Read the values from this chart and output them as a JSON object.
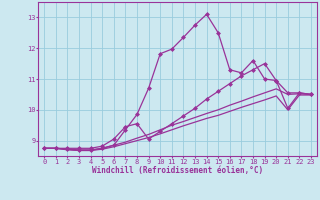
{
  "xlabel": "Windchill (Refroidissement éolien,°C)",
  "bg_color": "#cce8f0",
  "line_color": "#993399",
  "grid_color": "#99ccdd",
  "xlim": [
    -0.5,
    23.5
  ],
  "ylim": [
    8.5,
    13.5
  ],
  "xticks": [
    0,
    1,
    2,
    3,
    4,
    5,
    6,
    7,
    8,
    9,
    10,
    11,
    12,
    13,
    14,
    15,
    16,
    17,
    18,
    19,
    20,
    21,
    22,
    23
  ],
  "yticks": [
    9,
    10,
    11,
    12,
    13
  ],
  "series": [
    {
      "x": [
        0,
        1,
        2,
        3,
        4,
        5,
        6,
        7,
        8,
        9,
        10,
        11,
        12,
        13,
        14,
        15,
        16,
        17,
        18,
        19,
        20,
        21,
        22,
        23
      ],
      "y": [
        8.75,
        8.75,
        8.75,
        8.75,
        8.75,
        8.82,
        9.05,
        9.45,
        9.55,
        9.05,
        9.3,
        9.55,
        9.8,
        10.05,
        10.35,
        10.6,
        10.85,
        11.1,
        11.3,
        11.5,
        10.95,
        10.55,
        10.55,
        10.5
      ],
      "marker": true
    },
    {
      "x": [
        0,
        1,
        2,
        3,
        4,
        5,
        6,
        7,
        8,
        9,
        10,
        11,
        12,
        13,
        14,
        15,
        16,
        17,
        18,
        19,
        20,
        21,
        22,
        23
      ],
      "y": [
        8.75,
        8.75,
        8.72,
        8.7,
        8.7,
        8.75,
        8.85,
        8.95,
        9.08,
        9.2,
        9.35,
        9.5,
        9.62,
        9.75,
        9.88,
        10.0,
        10.15,
        10.28,
        10.42,
        10.55,
        10.68,
        10.5,
        10.52,
        10.5
      ],
      "marker": false
    },
    {
      "x": [
        0,
        1,
        2,
        3,
        4,
        5,
        6,
        7,
        8,
        9,
        10,
        11,
        12,
        13,
        14,
        15,
        16,
        17,
        18,
        19,
        20,
        21,
        22,
        23
      ],
      "y": [
        8.75,
        8.75,
        8.7,
        8.68,
        8.68,
        8.72,
        8.8,
        8.9,
        9.0,
        9.1,
        9.22,
        9.35,
        9.48,
        9.6,
        9.72,
        9.82,
        9.95,
        10.08,
        10.2,
        10.32,
        10.45,
        10.0,
        10.48,
        10.48
      ],
      "marker": false
    },
    {
      "x": [
        0,
        1,
        2,
        3,
        4,
        5,
        6,
        7,
        8,
        9,
        10,
        11,
        12,
        13,
        14,
        15,
        16,
        17,
        18,
        19,
        20,
        21,
        22,
        23
      ],
      "y": [
        8.75,
        8.75,
        8.72,
        8.68,
        8.68,
        8.75,
        8.85,
        9.35,
        9.85,
        10.7,
        11.82,
        11.97,
        12.35,
        12.75,
        13.1,
        12.5,
        11.3,
        11.2,
        11.6,
        11.0,
        10.95,
        10.05,
        10.55,
        10.5
      ],
      "marker": true
    }
  ]
}
